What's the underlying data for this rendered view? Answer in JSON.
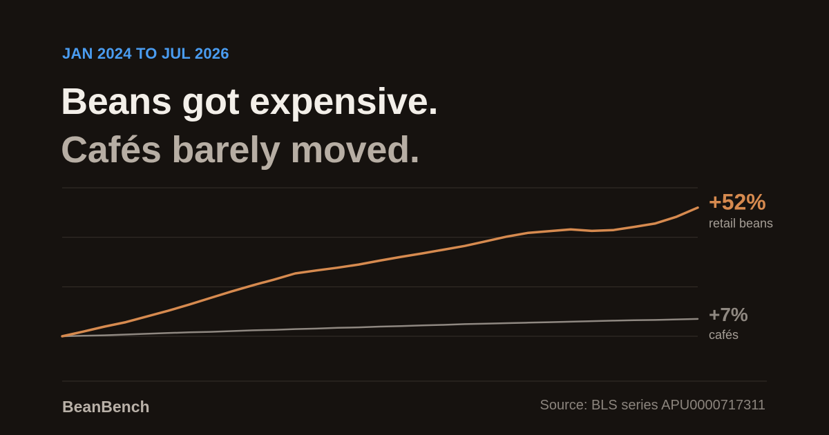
{
  "header": {
    "eyebrow": "JAN 2024 TO JUL 2026",
    "title_line1": "Beans got expensive.",
    "title_line2": "Cafés barely moved."
  },
  "footer": {
    "brand": "BeanBench",
    "source": "Source: BLS series APU0000717311"
  },
  "colors": {
    "background": "#16120f",
    "eyebrow": "#4a9cf0",
    "title_primary": "#f3efe9",
    "title_secondary": "#b7aea4",
    "beans": "#d68a4f",
    "cafes": "#8f8881",
    "grid": "#36302b",
    "label_sub": "#a59e96"
  },
  "chart_data": {
    "type": "line",
    "x": [
      "2024-01",
      "2024-02",
      "2024-03",
      "2024-04",
      "2024-05",
      "2024-06",
      "2024-07",
      "2024-08",
      "2024-09",
      "2024-10",
      "2024-11",
      "2024-12",
      "2025-01",
      "2025-02",
      "2025-03",
      "2025-04",
      "2025-05",
      "2025-06",
      "2025-07",
      "2025-08",
      "2025-09",
      "2025-10",
      "2025-11",
      "2025-12",
      "2026-01",
      "2026-02",
      "2026-03",
      "2026-04",
      "2026-05",
      "2026-06",
      "2026-07"
    ],
    "ylim": [
      0,
      60
    ],
    "series": [
      {
        "key": "beans",
        "name": "retail beans",
        "end_label": "+52%",
        "values": [
          0.0,
          1.9,
          3.9,
          5.7,
          8.0,
          10.3,
          12.8,
          15.5,
          18.1,
          20.6,
          22.9,
          25.4,
          26.6,
          27.7,
          29.0,
          30.6,
          32.1,
          33.5,
          35.0,
          36.5,
          38.4,
          40.3,
          41.8,
          42.5,
          43.2,
          42.6,
          42.9,
          44.2,
          45.6,
          48.3,
          52.0
        ]
      },
      {
        "key": "cafes",
        "name": "cafés",
        "end_label": "+7%",
        "values": [
          0.0,
          0.2,
          0.4,
          0.7,
          1.0,
          1.3,
          1.6,
          1.8,
          2.1,
          2.4,
          2.6,
          2.9,
          3.1,
          3.4,
          3.6,
          3.9,
          4.1,
          4.4,
          4.6,
          4.9,
          5.1,
          5.3,
          5.5,
          5.7,
          5.9,
          6.1,
          6.3,
          6.5,
          6.6,
          6.8,
          7.0
        ]
      }
    ],
    "grid": true,
    "legend": "end-of-line labels, right"
  }
}
